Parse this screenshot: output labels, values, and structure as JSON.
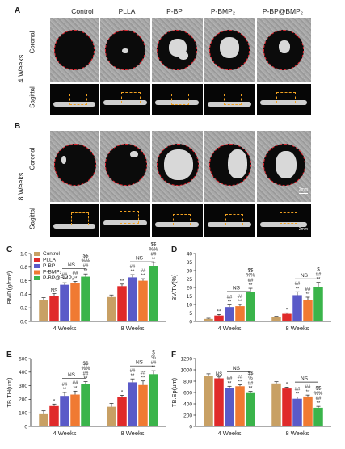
{
  "micro_ct": {
    "columns": [
      "Control",
      "PLLA",
      "P-BP",
      "P-BMP₂",
      "P-BP@BMP₂"
    ],
    "panel_a": "A",
    "panel_b": "B",
    "week4": "4 Weeks",
    "week8": "8 Weeks",
    "coronal": "Coronal",
    "sagittal": "Sagittal",
    "scale_2mm": "2mm",
    "scale_small": "2mm"
  },
  "colors": {
    "Control": "#c8a064",
    "PLLA": "#e02a2a",
    "P-BP": "#5a5ac8",
    "P-BMP₂": "#f07a32",
    "P-BP@BMP₂": "#3ab44a",
    "circle": "#e0202a",
    "roi": "#f0a020"
  },
  "chart_data": [
    {
      "panel": "C",
      "type": "bar",
      "ylabel": "BMD(g/cm³)",
      "categories": [
        "4 Weeks",
        "8 Weeks"
      ],
      "ylim": [
        0,
        1.0
      ],
      "ticks": [
        "0.0",
        "0.2",
        "0.4",
        "0.6",
        "0.8",
        "1.0"
      ],
      "tick_values": [
        0,
        0.2,
        0.4,
        0.6,
        0.8,
        1.0
      ],
      "legend": [
        "Control",
        "PLLA",
        "P-BP",
        "P-BMP₂",
        "P-BP@BMP₂"
      ],
      "series": [
        {
          "name": "Control",
          "values": [
            0.32,
            0.36
          ],
          "err": [
            0.03,
            0.03
          ],
          "marks": [
            "",
            ""
          ]
        },
        {
          "name": "PLLA",
          "values": [
            0.38,
            0.52
          ],
          "err": [
            0.03,
            0.03
          ],
          "marks": [
            "NS",
            "**"
          ]
        },
        {
          "name": "P-BP",
          "values": [
            0.54,
            0.65
          ],
          "err": [
            0.03,
            0.04
          ],
          "marks": [
            "##\n**",
            "##\n**"
          ]
        },
        {
          "name": "P-BMP₂",
          "values": [
            0.56,
            0.6
          ],
          "err": [
            0.03,
            0.03
          ],
          "marks": [
            "##\n**",
            "##\n**"
          ]
        },
        {
          "name": "P-BP@BMP₂",
          "values": [
            0.66,
            0.82
          ],
          "err": [
            0.04,
            0.05
          ],
          "marks": [
            "$$\n%%\n##\n**",
            "$$\n%%\n##\n**"
          ]
        }
      ],
      "ns": [
        "NS",
        "NS"
      ]
    },
    {
      "panel": "D",
      "type": "bar",
      "ylabel": "BV/TV(%)",
      "categories": [
        "4 Weeks",
        "8 Weeks"
      ],
      "ylim": [
        0,
        40
      ],
      "ticks": [
        "0",
        "5",
        "10",
        "15",
        "20",
        "25",
        "30",
        "35",
        "40"
      ],
      "tick_values": [
        0,
        5,
        10,
        15,
        20,
        25,
        30,
        35,
        40
      ],
      "series": [
        {
          "name": "Control",
          "values": [
            1.5,
            2.5
          ],
          "err": [
            0.4,
            0.5
          ],
          "marks": [
            "",
            ""
          ]
        },
        {
          "name": "PLLA",
          "values": [
            3.5,
            4.5
          ],
          "err": [
            0.6,
            0.6
          ],
          "marks": [
            "**",
            "*"
          ]
        },
        {
          "name": "P-BP",
          "values": [
            8.5,
            15.5
          ],
          "err": [
            1.2,
            2.0
          ],
          "marks": [
            "##\n**",
            "##\n**"
          ]
        },
        {
          "name": "P-BMP₂",
          "values": [
            9.0,
            12.5
          ],
          "err": [
            1.0,
            1.8
          ],
          "marks": [
            "##\n**",
            "##\n**"
          ]
        },
        {
          "name": "P-BP@BMP₂",
          "values": [
            17.5,
            20.0
          ],
          "err": [
            2.0,
            3.0
          ],
          "marks": [
            "$$\n%%\n##\n**",
            "$\n##\n**"
          ]
        }
      ],
      "ns": [
        "NS",
        "NS"
      ]
    },
    {
      "panel": "E",
      "type": "bar",
      "ylabel": "TB.TH(um)",
      "categories": [
        "4 Weeks",
        "8 Weeks"
      ],
      "ylim": [
        0,
        500
      ],
      "ticks": [
        "0",
        "100",
        "200",
        "300",
        "400",
        "500"
      ],
      "tick_values": [
        0,
        100,
        200,
        300,
        400,
        500
      ],
      "series": [
        {
          "name": "Control",
          "values": [
            90,
            145
          ],
          "err": [
            25,
            25
          ],
          "marks": [
            "",
            ""
          ]
        },
        {
          "name": "PLLA",
          "values": [
            150,
            215
          ],
          "err": [
            15,
            15
          ],
          "marks": [
            "*",
            "*"
          ]
        },
        {
          "name": "P-BP",
          "values": [
            225,
            325
          ],
          "err": [
            25,
            25
          ],
          "marks": [
            "##\n**",
            "##\n**"
          ]
        },
        {
          "name": "P-BMP₂",
          "values": [
            235,
            305
          ],
          "err": [
            25,
            30
          ],
          "marks": [
            "##\n**",
            "##\n**"
          ]
        },
        {
          "name": "P-BP@BMP₂",
          "values": [
            310,
            385
          ],
          "err": [
            20,
            25
          ],
          "marks": [
            "$$\n%%\n##\n**",
            "$\n%\n##\n**"
          ]
        }
      ],
      "ns": [
        "NS",
        "NS"
      ]
    },
    {
      "panel": "F",
      "type": "bar",
      "ylabel": "TB.Sp(um)",
      "categories": [
        "4 Weeks",
        "8 Weeks"
      ],
      "ylim": [
        0,
        1200
      ],
      "ticks": [
        "0",
        "200",
        "400",
        "600",
        "800",
        "1000",
        "1200"
      ],
      "tick_values": [
        0,
        200,
        400,
        600,
        800,
        1000,
        1200
      ],
      "series": [
        {
          "name": "Control",
          "values": [
            900,
            760
          ],
          "err": [
            30,
            30
          ],
          "marks": [
            "",
            ""
          ]
        },
        {
          "name": "PLLA",
          "values": [
            850,
            670
          ],
          "err": [
            25,
            25
          ],
          "marks": [
            "NS",
            "*"
          ]
        },
        {
          "name": "P-BP",
          "values": [
            680,
            490
          ],
          "err": [
            30,
            30
          ],
          "marks": [
            "##\n**",
            "##\n**"
          ]
        },
        {
          "name": "P-BMP₂",
          "values": [
            710,
            530
          ],
          "err": [
            25,
            25
          ],
          "marks": [
            "##\n**",
            "##\n**"
          ]
        },
        {
          "name": "P-BP@BMP₂",
          "values": [
            590,
            330
          ],
          "err": [
            30,
            25
          ],
          "marks": [
            "$$\n%\n##\n**",
            "$$\n%%\n##\n**"
          ]
        }
      ],
      "ns": [
        "NS",
        "NS"
      ]
    }
  ]
}
